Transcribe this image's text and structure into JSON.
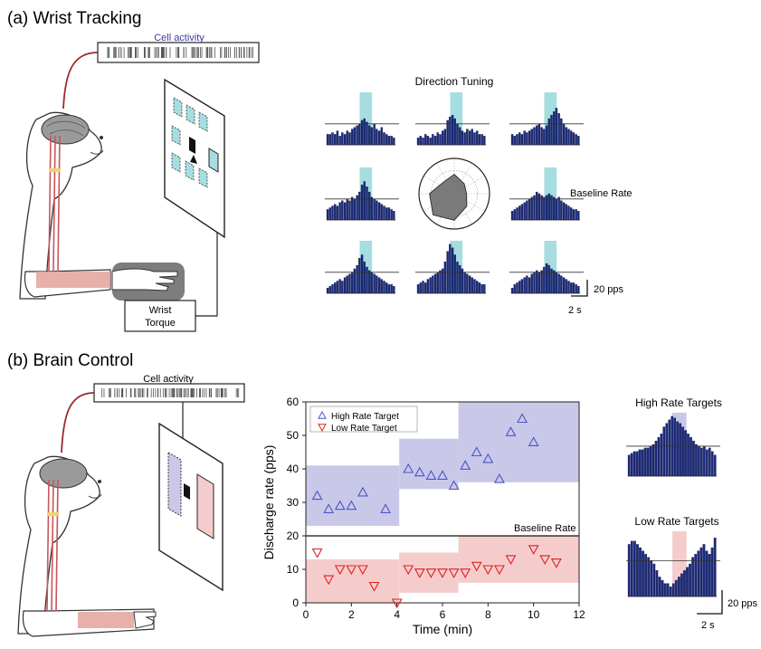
{
  "panel_a": {
    "title": "(a) Wrist Tracking",
    "cell_activity_label": "Cell activity",
    "wrist_torque_label_1": "Wrist",
    "wrist_torque_label_2": "Torque",
    "direction_tuning_title": "Direction Tuning",
    "baseline_label": "Baseline Rate",
    "scalebar_y_label": "20 pps",
    "scalebar_x_label": "2 s"
  },
  "panel_b": {
    "title": "(b) Brain Control",
    "cell_activity_label": "Cell activity",
    "high_rate_targets_title": "High Rate Targets",
    "low_rate_targets_title": "Low Rate Targets",
    "scalebar_y_label": "20 pps",
    "scalebar_x_label": "2 s"
  },
  "colors": {
    "bar_fill": "#1c2a78",
    "highlight_cyan": "#a6dde0",
    "high_band": "#c9c8e8",
    "low_band": "#f5cccc",
    "high_marker": "#4a55c8",
    "low_marker": "#e02020",
    "nerve": "#9b2a2a",
    "muscle": "#e3a39b"
  },
  "chart_data": [
    {
      "type": "scatter",
      "xlabel": "Time (min)",
      "ylabel": "Discharge rate (pps)",
      "xlim": [
        0,
        12
      ],
      "ylim": [
        0,
        60
      ],
      "xticks": [
        "0",
        "2",
        "4",
        "6",
        "8",
        "10",
        "12"
      ],
      "yticks": [
        "0",
        "10",
        "20",
        "30",
        "40",
        "50",
        "60"
      ],
      "baseline_rate": 20,
      "baseline_label": "Baseline Rate",
      "legend_position": "top-left",
      "series": [
        {
          "name": "High Rate Target",
          "marker": "triangle-up",
          "x": [
            0.5,
            1.0,
            1.5,
            2.0,
            2.5,
            3.5,
            4.5,
            5.0,
            5.5,
            6.0,
            6.5,
            7.0,
            7.5,
            8.0,
            8.5,
            9.0,
            9.5,
            10.0
          ],
          "y": [
            32,
            28,
            29,
            29,
            33,
            28,
            40,
            39,
            38,
            38,
            35,
            41,
            45,
            43,
            37,
            51,
            55,
            48
          ]
        },
        {
          "name": "Low Rate Target",
          "marker": "triangle-down",
          "x": [
            0.5,
            1.0,
            1.5,
            2.0,
            2.5,
            3.0,
            4.0,
            4.5,
            5.0,
            5.5,
            6.0,
            6.5,
            7.0,
            7.5,
            8.0,
            8.5,
            9.0,
            10.0,
            10.5,
            11.0
          ],
          "y": [
            15,
            7,
            10,
            10,
            10,
            5,
            0,
            10,
            9,
            9,
            9,
            9,
            9,
            11,
            10,
            10,
            13,
            16,
            13,
            12
          ]
        }
      ],
      "target_bands": [
        {
          "target": "high",
          "x": [
            0,
            4.1
          ],
          "y": [
            23,
            41
          ]
        },
        {
          "target": "high",
          "x": [
            4.1,
            6.7
          ],
          "y": [
            34,
            49
          ]
        },
        {
          "target": "high",
          "x": [
            6.7,
            12
          ],
          "y": [
            36,
            60
          ]
        },
        {
          "target": "low",
          "x": [
            0,
            4.1
          ],
          "y": [
            0,
            13
          ]
        },
        {
          "target": "low",
          "x": [
            4.1,
            6.7
          ],
          "y": [
            3,
            15
          ]
        },
        {
          "target": "low",
          "x": [
            6.7,
            12
          ],
          "y": [
            6,
            20
          ]
        }
      ]
    },
    {
      "type": "bar",
      "title": "Direction Tuning",
      "note": "3x3 grid of peri-event histograms (pps vs time); center shows polar tuning plot",
      "grid": [
        {
          "pos": "top-left",
          "values": [
            6,
            6,
            7,
            6,
            8,
            5,
            7,
            6,
            8,
            7,
            9,
            10,
            11,
            12,
            14,
            15,
            13,
            11,
            10,
            12,
            9,
            8,
            10,
            7,
            6,
            5,
            5,
            4
          ]
        },
        {
          "pos": "top-center",
          "values": [
            4,
            5,
            4,
            6,
            5,
            4,
            6,
            5,
            7,
            6,
            8,
            9,
            14,
            16,
            17,
            15,
            12,
            10,
            8,
            7,
            9,
            8,
            9,
            7,
            8,
            6,
            6,
            5
          ]
        },
        {
          "pos": "top-right",
          "values": [
            6,
            5,
            6,
            7,
            6,
            8,
            7,
            8,
            9,
            10,
            11,
            12,
            10,
            9,
            11,
            15,
            17,
            19,
            21,
            18,
            15,
            12,
            10,
            9,
            8,
            7,
            6,
            5
          ]
        },
        {
          "pos": "middle-left",
          "values": [
            6,
            7,
            8,
            9,
            8,
            10,
            11,
            10,
            12,
            11,
            13,
            12,
            14,
            16,
            20,
            22,
            19,
            16,
            13,
            12,
            11,
            10,
            9,
            8,
            7,
            7,
            6,
            5
          ]
        },
        {
          "pos": "middle-right",
          "values": [
            5,
            6,
            7,
            8,
            9,
            10,
            11,
            12,
            13,
            14,
            16,
            15,
            14,
            13,
            14,
            15,
            14,
            13,
            12,
            13,
            11,
            10,
            9,
            8,
            7,
            6,
            6,
            5
          ]
        },
        {
          "pos": "bottom-left",
          "values": [
            3,
            4,
            5,
            6,
            7,
            8,
            7,
            9,
            10,
            11,
            12,
            14,
            16,
            20,
            22,
            18,
            15,
            13,
            12,
            11,
            10,
            9,
            8,
            7,
            6,
            5,
            5,
            4
          ]
        },
        {
          "pos": "bottom-center",
          "values": [
            5,
            6,
            7,
            6,
            8,
            9,
            10,
            11,
            12,
            13,
            14,
            18,
            24,
            28,
            26,
            22,
            18,
            16,
            14,
            12,
            11,
            10,
            9,
            8,
            7,
            6,
            5,
            5
          ]
        },
        {
          "pos": "bottom-right",
          "values": [
            3,
            5,
            6,
            7,
            8,
            9,
            10,
            9,
            11,
            12,
            13,
            12,
            13,
            15,
            17,
            16,
            14,
            13,
            12,
            11,
            10,
            9,
            8,
            7,
            6,
            6,
            5,
            4
          ]
        }
      ],
      "polar_values": [
        0.55,
        0.4,
        0.35,
        0.5,
        0.75,
        0.85,
        0.7,
        0.45
      ]
    },
    {
      "type": "bar",
      "title": "High Rate Targets",
      "values": [
        12,
        13,
        14,
        14,
        15,
        15,
        16,
        16,
        17,
        18,
        20,
        22,
        24,
        28,
        30,
        32,
        34,
        33,
        31,
        30,
        28,
        26,
        24,
        22,
        20,
        18,
        17,
        16,
        17,
        15,
        16,
        14,
        12
      ]
    },
    {
      "type": "bar",
      "title": "Low Rate Targets",
      "values": [
        16,
        17,
        17,
        16,
        15,
        14,
        13,
        12,
        11,
        10,
        8,
        6,
        5,
        4,
        4,
        3,
        4,
        5,
        6,
        7,
        8,
        9,
        10,
        12,
        13,
        14,
        15,
        16,
        14,
        13,
        15,
        18
      ]
    }
  ]
}
